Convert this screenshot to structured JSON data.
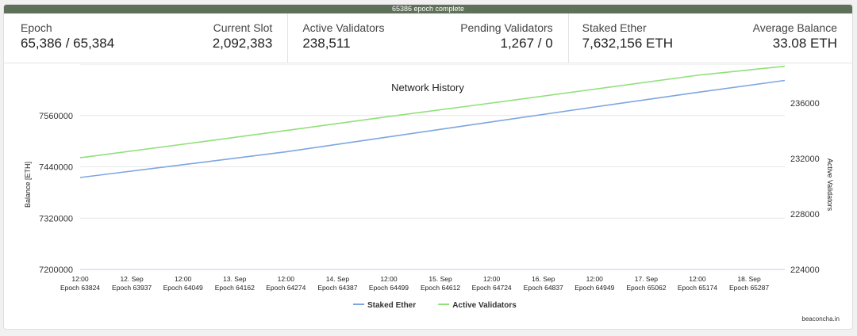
{
  "progress": {
    "text": "65386 epoch complete",
    "fraction": 1.0,
    "color": "#5e7059"
  },
  "stats": {
    "epoch": {
      "label": "Epoch",
      "value": "65,386 / 65,384"
    },
    "current_slot": {
      "label": "Current Slot",
      "value": "2,092,383"
    },
    "active_validators": {
      "label": "Active Validators",
      "value": "238,511"
    },
    "pending_validators": {
      "label": "Pending Validators",
      "value": "1,267 / 0"
    },
    "staked_ether": {
      "label": "Staked Ether",
      "value": "7,632,156 ETH"
    },
    "average_balance": {
      "label": "Average Balance",
      "value": "33.08 ETH"
    }
  },
  "chart_data": {
    "type": "line",
    "title": "Network History",
    "ylabel": "Balance [ETH]",
    "y2label": "Active Validators",
    "ylim": [
      7200000,
      7680000
    ],
    "y2lim": [
      224000,
      238800
    ],
    "yticks": [
      7200000,
      7320000,
      7440000,
      7560000
    ],
    "y2ticks": [
      224000,
      228000,
      232000,
      236000
    ],
    "x_range": [
      63824,
      65365
    ],
    "x_ticks": [
      {
        "epoch": 63824,
        "line1": "12:00",
        "line2": "Epoch 63824"
      },
      {
        "epoch": 63937,
        "line1": "12. Sep",
        "line2": "Epoch 63937"
      },
      {
        "epoch": 64049,
        "line1": "12:00",
        "line2": "Epoch 64049"
      },
      {
        "epoch": 64162,
        "line1": "13. Sep",
        "line2": "Epoch 64162"
      },
      {
        "epoch": 64274,
        "line1": "12:00",
        "line2": "Epoch 64274"
      },
      {
        "epoch": 64387,
        "line1": "14. Sep",
        "line2": "Epoch 64387"
      },
      {
        "epoch": 64499,
        "line1": "12:00",
        "line2": "Epoch 64499"
      },
      {
        "epoch": 64612,
        "line1": "15. Sep",
        "line2": "Epoch 64612"
      },
      {
        "epoch": 64724,
        "line1": "12:00",
        "line2": "Epoch 64724"
      },
      {
        "epoch": 64837,
        "line1": "16. Sep",
        "line2": "Epoch 64837"
      },
      {
        "epoch": 64949,
        "line1": "12:00",
        "line2": "Epoch 64949"
      },
      {
        "epoch": 65062,
        "line1": "17. Sep",
        "line2": "Epoch 65062"
      },
      {
        "epoch": 65174,
        "line1": "12:00",
        "line2": "Epoch 65174"
      },
      {
        "epoch": 65287,
        "line1": "18. Sep",
        "line2": "Epoch 65287"
      }
    ],
    "grid": true,
    "legend_position": "bottom-center",
    "series": [
      {
        "name": "Staked Ether",
        "axis": "left",
        "color": "#7da6e0",
        "x": [
          63824,
          64049,
          64274,
          64499,
          64724,
          64949,
          65174,
          65365
        ],
        "y": [
          7415000,
          7445000,
          7475000,
          7510000,
          7545000,
          7580000,
          7614000,
          7642000
        ]
      },
      {
        "name": "Active Validators",
        "axis": "right",
        "color": "#90e07a",
        "x": [
          63824,
          64049,
          64274,
          64499,
          64724,
          64949,
          65174,
          65365
        ],
        "y": [
          232050,
          233030,
          234020,
          235020,
          236000,
          237000,
          238000,
          238650
        ]
      }
    ]
  },
  "credit": "beaconcha.in"
}
